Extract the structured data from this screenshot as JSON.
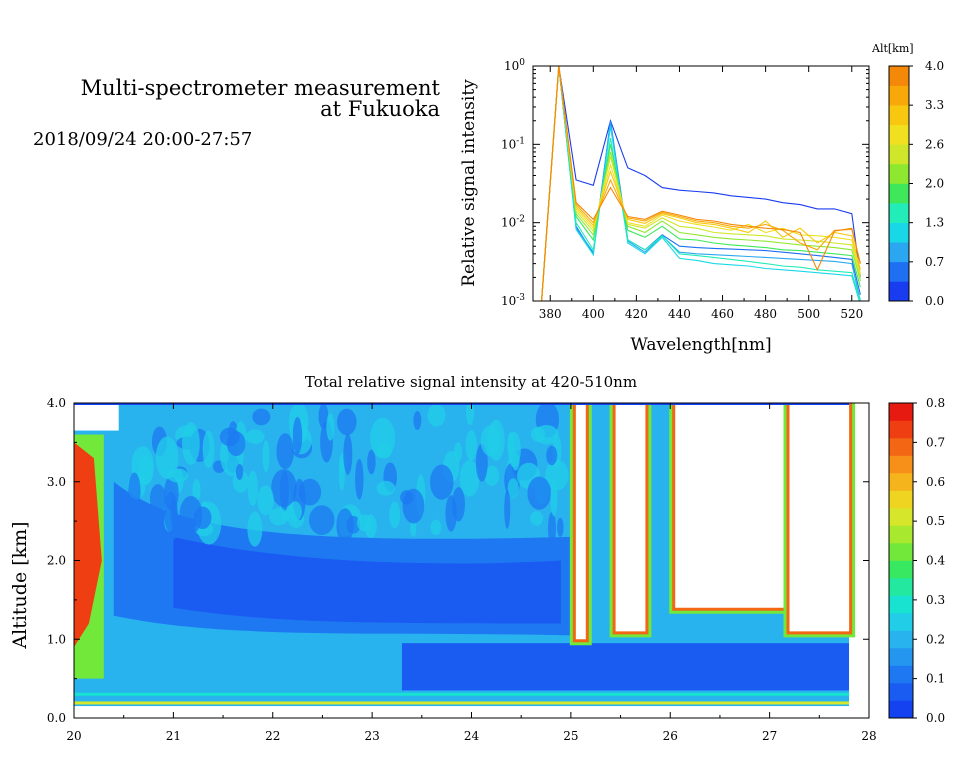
{
  "header": {
    "title_line1": "Multi-spectrometer measurement",
    "title_line2": "at Fukuoka",
    "date_range": "2018/09/24 20:00-27:57"
  },
  "chart_data": [
    {
      "type": "line",
      "title": "",
      "xlabel": "Wavelength[nm]",
      "ylabel": "Relative signal intensity",
      "xlim": [
        372,
        528
      ],
      "ylim": [
        0.001,
        1
      ],
      "yscale": "log",
      "x_ticks": [
        "380",
        "400",
        "420",
        "440",
        "460",
        "480",
        "500",
        "520"
      ],
      "y_ticks": [
        {
          "base": "10",
          "exp": "0"
        },
        {
          "base": "10",
          "exp": "-1"
        },
        {
          "base": "10",
          "exp": "-2"
        },
        {
          "base": "10",
          "exp": "-3"
        }
      ],
      "colorbar": {
        "title": "Alt[km]",
        "ticks": [
          "0.0",
          "0.7",
          "1.3",
          "2.0",
          "2.6",
          "3.3",
          "4.0"
        ],
        "colors": [
          "#1a3cf0",
          "#1f6ff2",
          "#2aa7f0",
          "#18d8e8",
          "#22ecb8",
          "#3ee85a",
          "#8fe830",
          "#cfe62a",
          "#f0e020",
          "#f8c810",
          "#f8a808",
          "#f48808"
        ]
      },
      "x": [
        376,
        384,
        392,
        400,
        408,
        416,
        424,
        432,
        440,
        448,
        456,
        464,
        472,
        480,
        488,
        496,
        504,
        512,
        520,
        524
      ],
      "series": [
        {
          "color": "#1a3cf0",
          "values": [
            0.001,
            1.0,
            0.035,
            0.03,
            0.2,
            0.05,
            0.04,
            0.028,
            0.026,
            0.025,
            0.024,
            0.022,
            0.021,
            0.02,
            0.018,
            0.017,
            0.015,
            0.015,
            0.013,
            0.002
          ]
        },
        {
          "color": "#1f6ff2",
          "values": [
            0.001,
            1.0,
            0.009,
            0.004,
            0.2,
            0.006,
            0.0045,
            0.007,
            0.005,
            0.0048,
            0.0047,
            0.0046,
            0.0045,
            0.0044,
            0.0042,
            0.004,
            0.0038,
            0.0036,
            0.0034,
            0.0012
          ]
        },
        {
          "color": "#2aa7f0",
          "values": [
            0.001,
            1.0,
            0.0085,
            0.0042,
            0.19,
            0.0058,
            0.0042,
            0.0068,
            0.0042,
            0.004,
            0.0039,
            0.0038,
            0.0037,
            0.0036,
            0.0035,
            0.0034,
            0.0033,
            0.0032,
            0.003,
            0.001
          ]
        },
        {
          "color": "#18d8e8",
          "values": [
            0.001,
            1.0,
            0.0082,
            0.0039,
            0.17,
            0.0055,
            0.004,
            0.0065,
            0.0035,
            0.0033,
            0.003,
            0.0029,
            0.0028,
            0.0026,
            0.0025,
            0.0024,
            0.0023,
            0.0022,
            0.0021,
            0.0009
          ]
        },
        {
          "color": "#22ecb8",
          "values": [
            0.001,
            1.0,
            0.01,
            0.0045,
            0.12,
            0.006,
            0.0045,
            0.0068,
            0.004,
            0.0038,
            0.0036,
            0.0034,
            0.0032,
            0.003,
            0.0028,
            0.0027,
            0.0025,
            0.0024,
            0.0023,
            0.001
          ]
        },
        {
          "color": "#3ee85a",
          "values": [
            0.001,
            1.0,
            0.012,
            0.006,
            0.1,
            0.008,
            0.0065,
            0.009,
            0.0062,
            0.006,
            0.0055,
            0.0052,
            0.005,
            0.0048,
            0.0045,
            0.0044,
            0.0042,
            0.004,
            0.0038,
            0.0015
          ]
        },
        {
          "color": "#8fe830",
          "values": [
            0.001,
            1.0,
            0.013,
            0.007,
            0.08,
            0.009,
            0.0075,
            0.0105,
            0.0075,
            0.007,
            0.0065,
            0.0062,
            0.006,
            0.0058,
            0.0055,
            0.0052,
            0.005,
            0.0048,
            0.0045,
            0.0018
          ]
        },
        {
          "color": "#cfe62a",
          "values": [
            0.001,
            1.0,
            0.014,
            0.0078,
            0.07,
            0.0095,
            0.0085,
            0.0115,
            0.009,
            0.0085,
            0.0075,
            0.0072,
            0.007,
            0.0068,
            0.0062,
            0.006,
            0.0058,
            0.0055,
            0.0052,
            0.002
          ]
        },
        {
          "color": "#f0e020",
          "values": [
            0.001,
            1.0,
            0.015,
            0.0085,
            0.055,
            0.01,
            0.009,
            0.0125,
            0.0105,
            0.0095,
            0.0088,
            0.008,
            0.0095,
            0.0075,
            0.0085,
            0.007,
            0.0068,
            0.0065,
            0.006,
            0.0022
          ]
        },
        {
          "color": "#f8c810",
          "values": [
            0.001,
            1.0,
            0.016,
            0.0092,
            0.045,
            0.011,
            0.0098,
            0.013,
            0.0115,
            0.01,
            0.0095,
            0.0085,
            0.0075,
            0.0105,
            0.0065,
            0.0085,
            0.0055,
            0.0075,
            0.0068,
            0.0025
          ]
        },
        {
          "color": "#f8a808",
          "values": [
            0.001,
            1.0,
            0.017,
            0.01,
            0.035,
            0.0115,
            0.0105,
            0.0135,
            0.012,
            0.0105,
            0.01,
            0.009,
            0.0085,
            0.0095,
            0.008,
            0.0055,
            0.0045,
            0.008,
            0.0082,
            0.003
          ]
        },
        {
          "color": "#f48808",
          "values": [
            0.001,
            1.0,
            0.018,
            0.011,
            0.028,
            0.012,
            0.011,
            0.014,
            0.0125,
            0.011,
            0.0105,
            0.0095,
            0.009,
            0.0085,
            0.0082,
            0.0075,
            0.0025,
            0.0078,
            0.0085,
            0.003
          ]
        }
      ]
    },
    {
      "type": "heatmap",
      "title": "Total relative signal intensity at 420-510nm",
      "xlabel": "",
      "ylabel": "Altitude [km]",
      "xlim": [
        20,
        28
      ],
      "ylim": [
        0,
        4
      ],
      "x_ticks": [
        "20",
        "21",
        "22",
        "23",
        "24",
        "25",
        "26",
        "27",
        "28"
      ],
      "y_ticks": [
        "0.0",
        "1.0",
        "2.0",
        "3.0",
        "4.0"
      ],
      "colorbar": {
        "title": "",
        "ticks": [
          "0.0",
          "0.1",
          "0.2",
          "0.3",
          "0.4",
          "0.5",
          "0.6",
          "0.7",
          "0.8"
        ],
        "colors": [
          "#1442f0",
          "#1a5cf2",
          "#1e78f2",
          "#2496f0",
          "#28b2ee",
          "#22cde8",
          "#18e2d0",
          "#22e8a0",
          "#38e860",
          "#72e83a",
          "#a8e82e",
          "#d6e62a",
          "#f0d422",
          "#f6b41c",
          "#f69018",
          "#f26614",
          "#ee3e12",
          "#e61a10"
        ]
      },
      "data_extent": {
        "x": [
          20.0,
          27.8
        ],
        "y": [
          0.15,
          4.0
        ]
      },
      "profiles": [
        {
          "t_start": 20.0,
          "t_end": 20.45,
          "cloud_base": 3.6,
          "cloud_top": 4.0,
          "description": "clear"
        },
        {
          "t_start": 25.05,
          "t_end": 25.15,
          "cloud_base": 1.0,
          "cloud_top": 4.0,
          "description": "cloud"
        },
        {
          "t_start": 25.45,
          "t_end": 25.75,
          "cloud_base": 1.1,
          "cloud_top": 4.0,
          "description": "cloud"
        },
        {
          "t_start": 26.05,
          "t_end": 27.2,
          "cloud_base": 1.4,
          "cloud_top": 4.0,
          "description": "cloud"
        },
        {
          "t_start": 27.2,
          "t_end": 27.8,
          "cloud_base": 1.1,
          "cloud_top": 4.0,
          "description": "cloud"
        }
      ]
    }
  ]
}
